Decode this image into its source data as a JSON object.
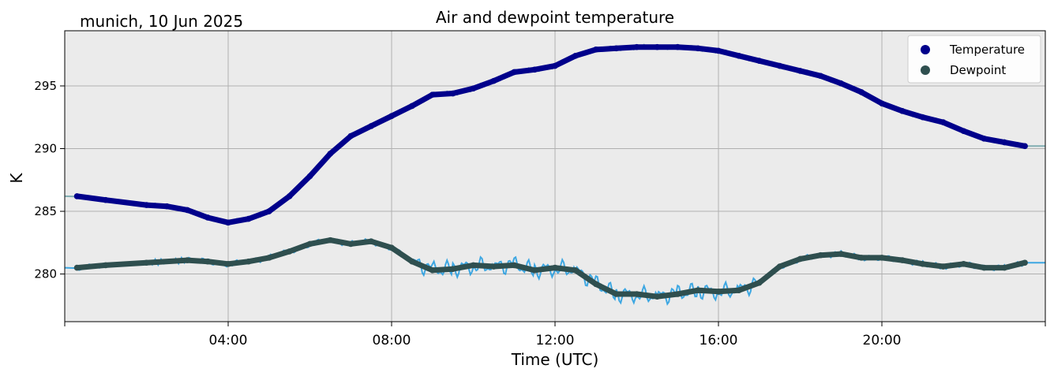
{
  "location_label": "munich, 10 Jun 2025",
  "chart_data": {
    "type": "line",
    "title": "Air and dewpoint temperature",
    "xlabel": "Time (UTC)",
    "ylabel": "K",
    "xlim": [
      0,
      24
    ],
    "ylim": [
      276.2,
      299.4
    ],
    "xticks": [
      {
        "x": 4,
        "label": "04:00"
      },
      {
        "x": 8,
        "label": "08:00"
      },
      {
        "x": 12,
        "label": "12:00"
      },
      {
        "x": 16,
        "label": "16:00"
      },
      {
        "x": 20,
        "label": "20:00"
      }
    ],
    "yticks": [
      {
        "y": 280,
        "label": "280"
      },
      {
        "y": 285,
        "label": "285"
      },
      {
        "y": 290,
        "label": "290"
      },
      {
        "y": 295,
        "label": "295"
      }
    ],
    "grid": true,
    "legend_position": "top-right",
    "background_color": "#ebebeb",
    "series": [
      {
        "name": "Temperature",
        "color": "#00008b",
        "raw_color": "#6fa3a8",
        "x": [
          0.3,
          1.0,
          2.0,
          2.5,
          3.0,
          3.5,
          4.0,
          4.5,
          5.0,
          5.5,
          6.0,
          6.5,
          7.0,
          7.5,
          8.0,
          8.5,
          9.0,
          9.5,
          10.0,
          10.5,
          11.0,
          11.5,
          12.0,
          12.5,
          13.0,
          13.5,
          14.0,
          14.5,
          15.0,
          15.5,
          16.0,
          16.5,
          17.0,
          17.5,
          18.0,
          18.5,
          19.0,
          19.5,
          20.0,
          20.5,
          21.0,
          21.5,
          22.0,
          22.5,
          23.0,
          23.5
        ],
        "values": [
          286.2,
          285.9,
          285.5,
          285.4,
          285.1,
          284.5,
          284.1,
          284.4,
          285.0,
          286.2,
          287.8,
          289.6,
          291.0,
          291.8,
          292.6,
          293.4,
          294.3,
          294.4,
          294.8,
          295.4,
          296.1,
          296.3,
          296.6,
          297.4,
          297.9,
          298.0,
          298.1,
          298.1,
          298.1,
          298.0,
          297.8,
          297.4,
          297.0,
          296.6,
          296.2,
          295.8,
          295.2,
          294.5,
          293.6,
          293.0,
          292.5,
          292.1,
          291.4,
          290.8,
          290.5,
          290.2
        ]
      },
      {
        "name": "Dewpoint",
        "color": "#2f4f4f",
        "raw_color": "#1f9be0",
        "x": [
          0.3,
          1.0,
          2.0,
          3.0,
          3.5,
          4.0,
          4.5,
          5.0,
          5.5,
          6.0,
          6.5,
          7.0,
          7.5,
          8.0,
          8.5,
          9.0,
          9.5,
          10.0,
          10.5,
          11.0,
          11.5,
          12.0,
          12.5,
          13.0,
          13.5,
          14.0,
          14.5,
          15.0,
          15.5,
          16.0,
          16.5,
          17.0,
          17.5,
          18.0,
          18.5,
          19.0,
          19.5,
          20.0,
          20.5,
          21.0,
          21.5,
          22.0,
          22.5,
          23.0,
          23.5
        ],
        "values": [
          280.5,
          280.7,
          280.9,
          281.1,
          281.0,
          280.8,
          281.0,
          281.3,
          281.8,
          282.4,
          282.7,
          282.4,
          282.6,
          282.1,
          281.0,
          280.3,
          280.4,
          280.7,
          280.6,
          280.7,
          280.3,
          280.5,
          280.3,
          279.2,
          278.4,
          278.4,
          278.2,
          278.4,
          278.7,
          278.6,
          278.7,
          279.3,
          280.6,
          281.2,
          281.5,
          281.6,
          281.3,
          281.3,
          281.1,
          280.8,
          280.6,
          280.8,
          280.5,
          280.5,
          280.9
        ]
      }
    ]
  }
}
